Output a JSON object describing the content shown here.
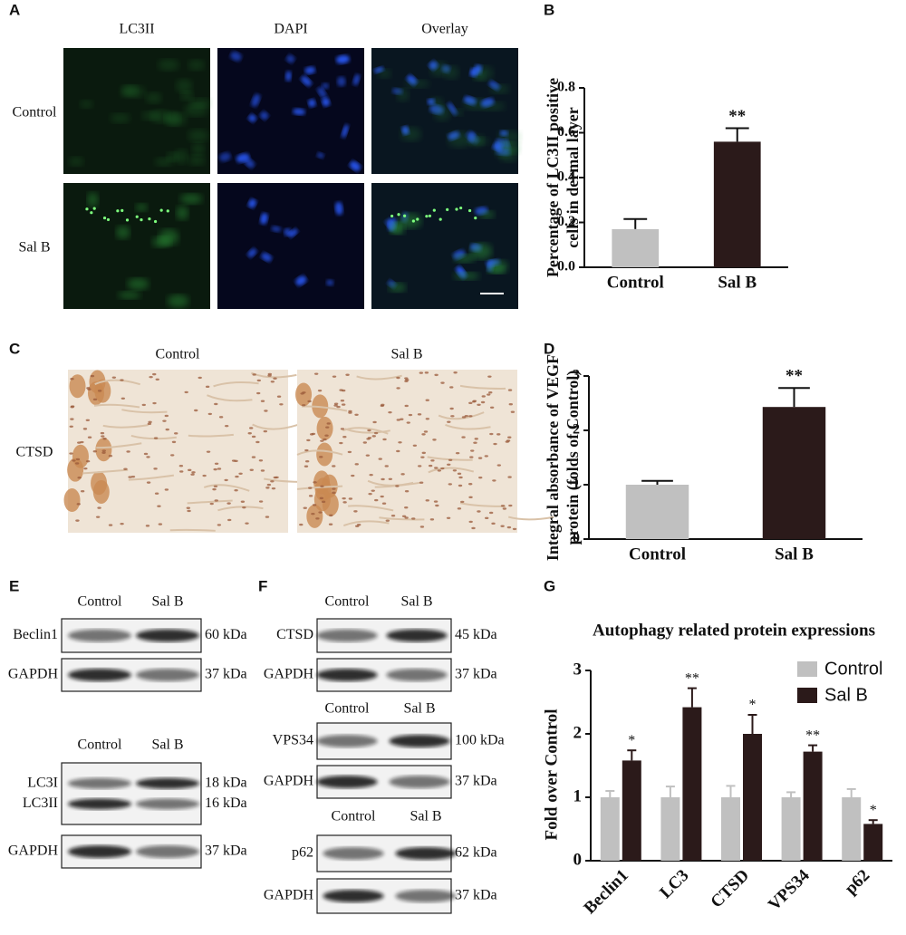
{
  "panel_a": {
    "label": "A",
    "columns": [
      "LC3II",
      "DAPI",
      "Overlay"
    ],
    "rows": [
      "Control",
      "Sal B"
    ]
  },
  "panel_c": {
    "label": "C",
    "columns": [
      "Control",
      "Sal B"
    ],
    "rows": [
      "CTSD"
    ]
  },
  "panel_e": {
    "label": "E",
    "blots": [
      {
        "lanes": [
          "Control",
          "Sal B"
        ],
        "boxes": [
          [
            {
              "name": "Beclin1",
              "size": "60 kDa"
            }
          ],
          [
            {
              "name": "GAPDH",
              "size": "37 kDa"
            }
          ]
        ]
      },
      {
        "lanes": [
          "Control",
          "Sal B"
        ],
        "boxes": [
          [
            {
              "name": "LC3I",
              "size": "18 kDa"
            },
            {
              "name": "LC3II",
              "size": "16 kDa"
            }
          ],
          [
            {
              "name": "GAPDH",
              "size": "37 kDa"
            }
          ]
        ]
      }
    ]
  },
  "panel_f": {
    "label": "F",
    "blots": [
      {
        "lanes": [
          "Control",
          "Sal B"
        ],
        "boxes": [
          [
            {
              "name": "CTSD",
              "size": "45 kDa"
            }
          ],
          [
            {
              "name": "GAPDH",
              "size": "37 kDa"
            }
          ]
        ]
      },
      {
        "lanes": [
          "Control",
          "Sal B"
        ],
        "boxes": [
          [
            {
              "name": "VPS34",
              "size": "100 kDa"
            }
          ],
          [
            {
              "name": "GAPDH",
              "size": "37 kDa"
            }
          ]
        ]
      },
      {
        "lanes": [
          "Control",
          "Sal B"
        ],
        "boxes": [
          [
            {
              "name": "p62",
              "size": "62 kDa"
            }
          ],
          [
            {
              "name": "GAPDH",
              "size": "37 kDa"
            }
          ]
        ]
      }
    ]
  },
  "chart_data": [
    {
      "type": "bar",
      "panel": "B",
      "ylabel": [
        "Percentage of LC3II positive",
        "cells in dermal layer"
      ],
      "categories": [
        "Control",
        "Sal B"
      ],
      "values": [
        0.17,
        0.56
      ],
      "errors": [
        0.045,
        0.06
      ],
      "significance": [
        null,
        "**"
      ],
      "colors": [
        "#c0c0c0",
        "#2b1a1a"
      ],
      "ylim": [
        0,
        0.8
      ],
      "yticks": [
        {
          "value": 0,
          "label": "0.0"
        },
        0.2,
        0.4,
        0.6,
        0.8
      ]
    },
    {
      "type": "bar",
      "panel": "D",
      "ylabel": [
        "Integral absorbance of VEGF",
        "protein (folds of Control)"
      ],
      "categories": [
        "Control",
        "Sal B"
      ],
      "values": [
        1.0,
        2.43
      ],
      "errors": [
        0.07,
        0.35
      ],
      "significance": [
        null,
        "**"
      ],
      "colors": [
        "#c0c0c0",
        "#2b1a1a"
      ],
      "ylim": [
        0,
        3
      ],
      "yticks": [
        0,
        1,
        2,
        3
      ]
    },
    {
      "type": "grouped-bar",
      "panel": "G",
      "title": "Autophagy related protein expressions",
      "ylabel": "Fold over Control",
      "categories": [
        "Beclin1",
        "LC3",
        "CTSD",
        "VPS34",
        "p62"
      ],
      "legend": "upper right",
      "series": [
        {
          "name": "Control",
          "color": "#c0c0c0",
          "values": [
            1.0,
            1.0,
            1.0,
            1.0,
            1.0
          ],
          "errors": [
            0.1,
            0.17,
            0.18,
            0.08,
            0.13
          ]
        },
        {
          "name": "Sal B",
          "color": "#2b1a1a",
          "values": [
            1.58,
            2.42,
            2.0,
            1.72,
            0.58
          ],
          "errors": [
            0.16,
            0.3,
            0.3,
            0.1,
            0.06
          ],
          "significance": [
            "*",
            "**",
            "*",
            "**",
            "*"
          ]
        }
      ],
      "ylim": [
        0,
        3
      ],
      "yticks": [
        0,
        1,
        2,
        3
      ]
    }
  ]
}
